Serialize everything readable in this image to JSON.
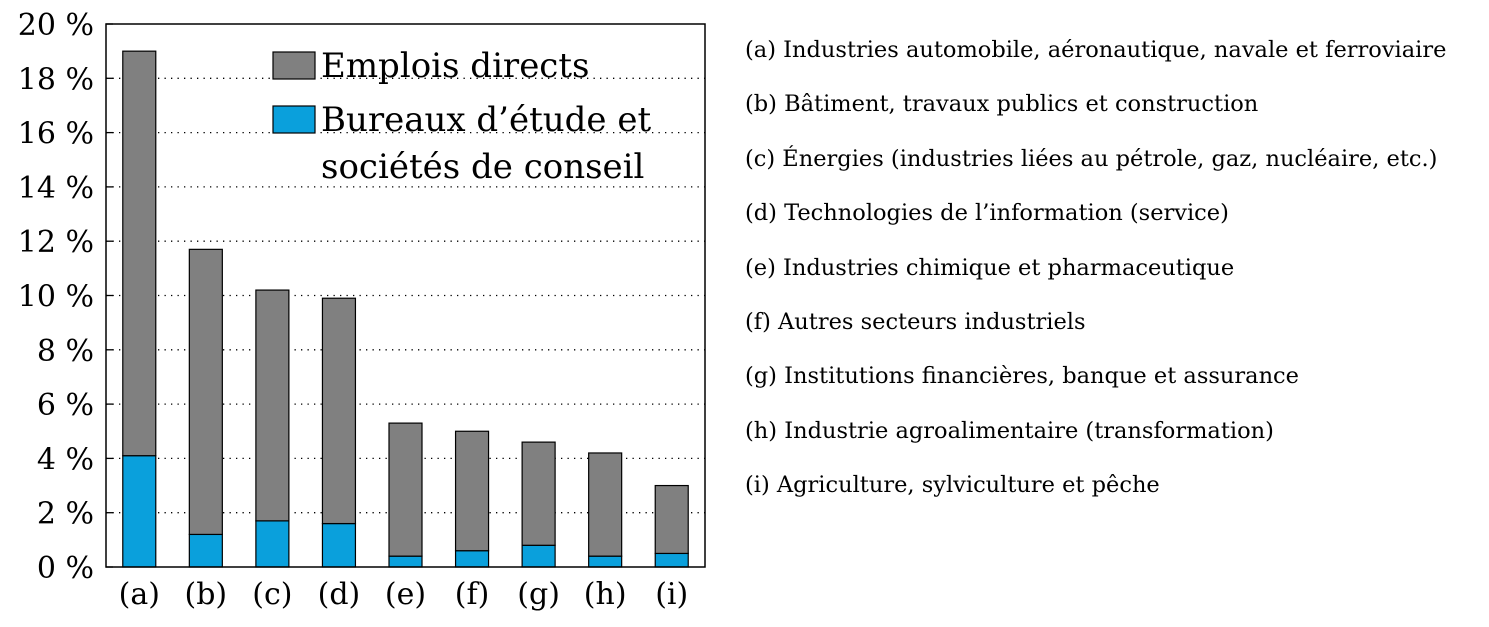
{
  "chart_data": {
    "type": "bar",
    "stacked": true,
    "categories": [
      "(a)",
      "(b)",
      "(c)",
      "(d)",
      "(e)",
      "(f)",
      "(g)",
      "(h)",
      "(i)"
    ],
    "series": [
      {
        "name": "Bureaux d’étude et sociétés de conseil",
        "color": "#0aa0dc",
        "values": [
          4.1,
          1.2,
          1.7,
          1.6,
          0.4,
          0.6,
          0.8,
          0.4,
          0.5
        ]
      },
      {
        "name": "Emplois directs",
        "color": "#808080",
        "values": [
          14.9,
          10.5,
          8.5,
          8.3,
          4.9,
          4.4,
          3.8,
          3.8,
          2.5
        ]
      }
    ],
    "totals": [
      19.0,
      11.7,
      10.2,
      9.9,
      5.3,
      5.0,
      4.6,
      4.2,
      3.0
    ],
    "ylim": [
      0,
      20
    ],
    "yticks": [
      "0 %",
      "2 %",
      "4 %",
      "6 %",
      "8 %",
      "10 %",
      "12 %",
      "14 %",
      "16 %",
      "18 %",
      "20 %"
    ],
    "grid": "horizontal-dotted",
    "legend": {
      "placement": "top-right",
      "entries": [
        {
          "lines": [
            "Emplois directs"
          ],
          "color": "#808080"
        },
        {
          "lines": [
            "Bureaux d’étude et",
            "sociétés de conseil"
          ],
          "color": "#0aa0dc"
        }
      ]
    }
  },
  "key": [
    "(a) Industries automobile, aéronautique, navale et ferroviaire",
    "(b) Bâtiment, travaux publics et construction",
    "(c) Énergies (industries liées au pétrole, gaz, nucléaire, etc.)",
    "(d) Technologies de l’information (service)",
    "(e) Industries chimique et pharmaceutique",
    "(f) Autres secteurs industriels",
    "(g) Institutions financières, banque et assurance",
    "(h) Industrie agroalimentaire (transformation)",
    "(i) Agriculture, sylviculture et pêche"
  ]
}
